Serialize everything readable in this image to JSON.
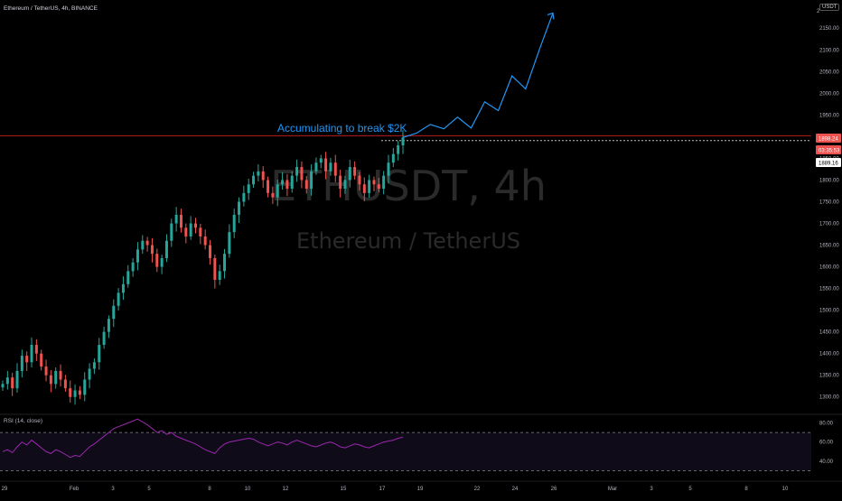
{
  "header": {
    "title": "Ethereum / TetherUS, 4h, BINANCE"
  },
  "currency_badge": "USDT",
  "watermark": {
    "symbol": "ETHUSDT, 4h",
    "name": "Ethereum / TetherUS"
  },
  "annotation": "Accumulating to break $2K",
  "price_labels": {
    "last": "1898.24",
    "countdown": "03:35:53",
    "level": "1889.16",
    "top_partial": "2"
  },
  "rsi": {
    "title": "RSI (14, close)",
    "upper": 70,
    "lower": 30,
    "ticks": [
      "80.00",
      "60.00",
      "40.00"
    ]
  },
  "colors": {
    "up": "#26a69a",
    "down": "#ef5350",
    "projection": "#2196f3",
    "rsi_line": "#9c27b0",
    "resistance": "#b71c1c"
  },
  "chart_data": {
    "type": "candlestick",
    "title": "Ethereum / TetherUS, 4h, BINANCE",
    "y_ticks": [
      "2150.00",
      "2100.00",
      "2050.00",
      "2000.00",
      "1950.00",
      "1900.00",
      "1850.00",
      "1800.00",
      "1750.00",
      "1700.00",
      "1650.00",
      "1600.00",
      "1550.00",
      "1500.00",
      "1450.00",
      "1400.00",
      "1350.00",
      "1300.00"
    ],
    "y_tick_values": [
      2150,
      2100,
      2050,
      2000,
      1950,
      1900,
      1850,
      1800,
      1750,
      1700,
      1650,
      1600,
      1550,
      1500,
      1450,
      1400,
      1350,
      1300
    ],
    "ylim": [
      1262,
      2215
    ],
    "x_ticks": [
      "29",
      "Feb",
      "3",
      "5",
      "8",
      "10",
      "12",
      "15",
      "17",
      "19",
      "22",
      "24",
      "26",
      "Mar",
      "3",
      "5",
      "8",
      "10"
    ],
    "resistance_level": 1902,
    "last_price": 1898.24,
    "level_price": 1889.16,
    "annotation": "Accumulating to break $2K",
    "ohlc_approx_closes": [
      1330,
      1345,
      1320,
      1360,
      1395,
      1380,
      1420,
      1400,
      1370,
      1350,
      1330,
      1360,
      1340,
      1320,
      1300,
      1315,
      1305,
      1340,
      1365,
      1380,
      1420,
      1450,
      1480,
      1510,
      1540,
      1560,
      1590,
      1610,
      1640,
      1660,
      1650,
      1630,
      1600,
      1620,
      1660,
      1700,
      1720,
      1690,
      1670,
      1700,
      1690,
      1670,
      1650,
      1620,
      1570,
      1590,
      1630,
      1680,
      1720,
      1750,
      1770,
      1790,
      1810,
      1820,
      1800,
      1770,
      1760,
      1790,
      1800,
      1780,
      1810,
      1830,
      1800,
      1780,
      1820,
      1840,
      1850,
      1820,
      1840,
      1810,
      1780,
      1800,
      1830,
      1810,
      1790,
      1770,
      1800,
      1790,
      1780,
      1810,
      1840,
      1860,
      1880,
      1898
    ],
    "projection_path": [
      [
        1898,
        0
      ],
      [
        1908,
        1
      ],
      [
        1928,
        2
      ],
      [
        1918,
        3
      ],
      [
        1945,
        4
      ],
      [
        1920,
        5
      ],
      [
        1980,
        6
      ],
      [
        1960,
        7
      ],
      [
        2040,
        8
      ],
      [
        2010,
        9
      ],
      [
        2100,
        10
      ],
      [
        2185,
        11
      ]
    ],
    "rsi_series_approx": [
      50,
      52,
      49,
      55,
      60,
      57,
      62,
      58,
      54,
      50,
      48,
      52,
      50,
      47,
      44,
      46,
      45,
      50,
      55,
      58,
      62,
      66,
      70,
      74,
      76,
      78,
      80,
      82,
      84,
      81,
      78,
      74,
      70,
      72,
      68,
      70,
      66,
      64,
      62,
      60,
      58,
      55,
      52,
      50,
      48,
      54,
      58,
      60,
      61,
      62,
      63,
      64,
      63,
      60,
      58,
      56,
      58,
      60,
      59,
      57,
      60,
      62,
      60,
      58,
      56,
      55,
      57,
      59,
      60,
      58,
      55,
      54,
      56,
      58,
      57,
      55,
      54,
      56,
      58,
      60,
      61,
      62,
      64,
      65
    ]
  }
}
